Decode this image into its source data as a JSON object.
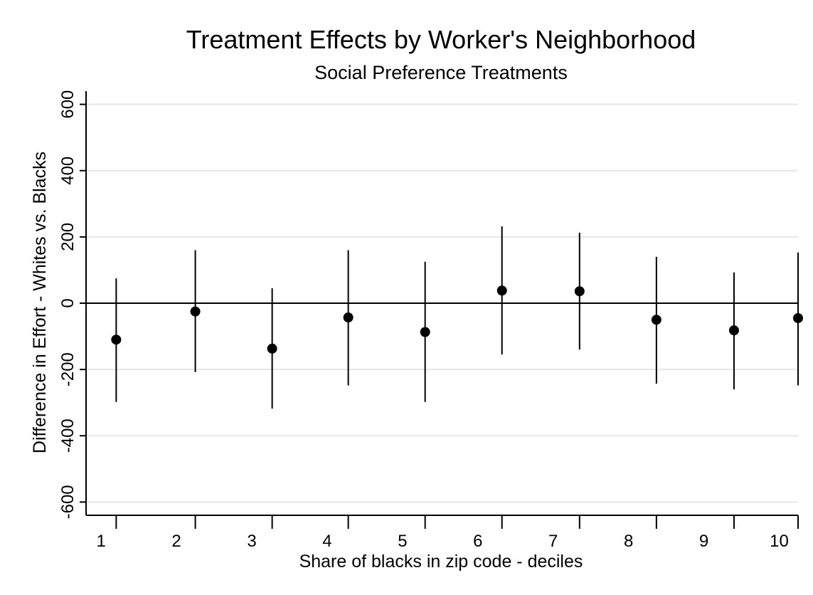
{
  "chart_data": {
    "type": "scatter",
    "title": "Treatment Effects by Worker's Neighborhood",
    "subtitle": "Social Preference Treatments",
    "xlabel": "Share of blacks in zip code - deciles",
    "ylabel": "Difference in Effort - Whites vs. Blacks",
    "xlim": [
      0.8,
      10.25
    ],
    "ylim": [
      -640,
      640
    ],
    "x_ticks": [
      1,
      2,
      3,
      4,
      5,
      6,
      7,
      8,
      9,
      10
    ],
    "y_ticks": [
      -600,
      -400,
      -200,
      0,
      200,
      400,
      600
    ],
    "grid": true,
    "reference_line_y": 0,
    "points": [
      {
        "x": 1.2,
        "y": -110,
        "ci_low": -298,
        "ci_high": 75
      },
      {
        "x": 2.25,
        "y": -25,
        "ci_low": -208,
        "ci_high": 160
      },
      {
        "x": 3.27,
        "y": -137,
        "ci_low": -318,
        "ci_high": 45
      },
      {
        "x": 4.28,
        "y": -43,
        "ci_low": -248,
        "ci_high": 160
      },
      {
        "x": 5.3,
        "y": -87,
        "ci_low": -298,
        "ci_high": 125
      },
      {
        "x": 6.32,
        "y": 38,
        "ci_low": -155,
        "ci_high": 232
      },
      {
        "x": 7.35,
        "y": 36,
        "ci_low": -140,
        "ci_high": 213
      },
      {
        "x": 8.37,
        "y": -50,
        "ci_low": -243,
        "ci_high": 140
      },
      {
        "x": 9.4,
        "y": -82,
        "ci_low": -260,
        "ci_high": 93
      },
      {
        "x": 10.42,
        "y": -45,
        "ci_low": -248,
        "ci_high": 153
      }
    ],
    "colors": {
      "marker": "#000000",
      "grid": "#e6e6e6",
      "axis": "#000000"
    }
  }
}
